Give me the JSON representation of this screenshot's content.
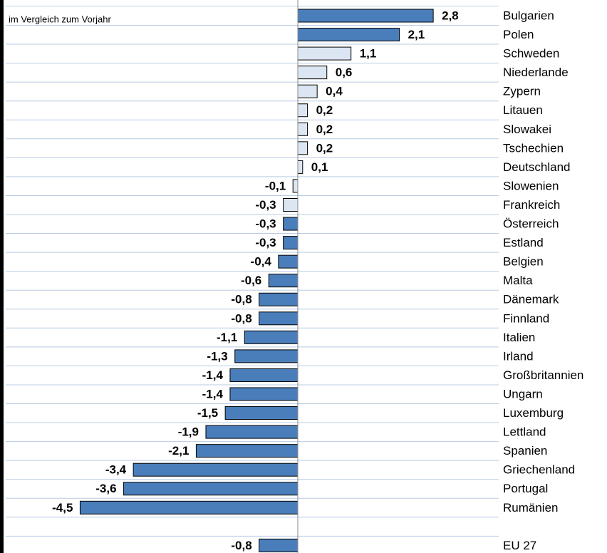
{
  "chart_data": {
    "type": "hbar",
    "subtitle": "im Vergleich zum Vorjahr",
    "categories": [
      "Bulgarien",
      "Polen",
      "Schweden",
      "Niederlande",
      "Zypern",
      "Litauen",
      "Slowakei",
      "Tschechien",
      "Deutschland",
      "Slowenien",
      "Frankreich",
      "Österreich",
      "Estland",
      "Belgien",
      "Malta",
      "Dänemark",
      "Finnland",
      "Italien",
      "Irland",
      "Großbritannien",
      "Ungarn",
      "Luxemburg",
      "Lettland",
      "Spanien",
      "Griechenland",
      "Portugal",
      "Rumänien",
      null,
      "EU 27"
    ],
    "values": [
      2.8,
      2.1,
      1.1,
      0.6,
      0.4,
      0.2,
      0.2,
      0.2,
      0.1,
      -0.1,
      -0.3,
      -0.3,
      -0.3,
      -0.4,
      -0.6,
      -0.8,
      -0.8,
      -1.1,
      -1.3,
      -1.4,
      -1.4,
      -1.5,
      -1.9,
      -2.1,
      -3.4,
      -3.6,
      -4.5,
      null,
      -0.8
    ],
    "value_labels": [
      "2,8",
      "2,1",
      "1,1",
      "0,6",
      "0,4",
      "0,2",
      "0,2",
      "0,2",
      "0,1",
      "-0,1",
      "-0,3",
      "-0,3",
      "-0,3",
      "-0,4",
      "-0,6",
      "-0,8",
      "-0,8",
      "-1,1",
      "-1,3",
      "-1,4",
      "-1,4",
      "-1,5",
      "-1,9",
      "-2,1",
      "-3,4",
      "-3,6",
      "-4,5",
      null,
      "-0,8"
    ],
    "colors": [
      "#4a7ebb",
      "#4a7ebb",
      "#dce6f2",
      "#dce6f2",
      "#dce6f2",
      "#dce6f2",
      "#dce6f2",
      "#dce6f2",
      "#dce6f2",
      "#dce6f2",
      "#dce6f2",
      "#4a7ebb",
      "#4a7ebb",
      "#4a7ebb",
      "#4a7ebb",
      "#4a7ebb",
      "#4a7ebb",
      "#4a7ebb",
      "#4a7ebb",
      "#4a7ebb",
      "#4a7ebb",
      "#4a7ebb",
      "#4a7ebb",
      "#4a7ebb",
      "#4a7ebb",
      "#4a7ebb",
      "#4a7ebb",
      null,
      "#4a7ebb"
    ],
    "grid": true
  }
}
